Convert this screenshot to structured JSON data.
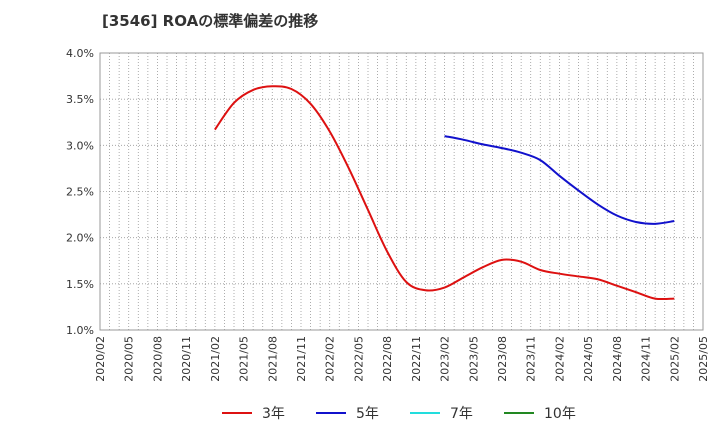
{
  "chart_data": {
    "type": "line",
    "title": "[3546]  ROAの標準偏差の推移",
    "xlabel": "",
    "ylabel": "",
    "x_ticks": [
      "2020/02",
      "2020/05",
      "2020/08",
      "2020/11",
      "2021/02",
      "2021/05",
      "2021/08",
      "2021/11",
      "2022/02",
      "2022/05",
      "2022/08",
      "2022/11",
      "2023/02",
      "2023/05",
      "2023/08",
      "2023/11",
      "2024/02",
      "2024/05",
      "2024/08",
      "2024/11",
      "2025/02",
      "2025/05"
    ],
    "y_ticks": [
      "1.0%",
      "1.5%",
      "2.0%",
      "2.5%",
      "3.0%",
      "3.5%",
      "4.0%"
    ],
    "ylim": [
      1.0,
      4.0
    ],
    "grid": true,
    "legend_position": "bottom",
    "series": [
      {
        "name": "3年",
        "color": "#dd1111",
        "x": [
          "2021/02",
          "2021/04",
          "2021/06",
          "2021/08",
          "2021/10",
          "2021/12",
          "2022/02",
          "2022/04",
          "2022/06",
          "2022/08",
          "2022/10",
          "2022/12",
          "2023/02",
          "2023/04",
          "2023/06",
          "2023/08",
          "2023/10",
          "2023/12",
          "2024/02",
          "2024/04",
          "2024/06",
          "2024/08",
          "2024/10",
          "2024/12",
          "2025/02"
        ],
        "values": [
          3.17,
          3.46,
          3.6,
          3.64,
          3.61,
          3.45,
          3.15,
          2.75,
          2.3,
          1.85,
          1.52,
          1.43,
          1.46,
          1.57,
          1.68,
          1.76,
          1.74,
          1.65,
          1.61,
          1.58,
          1.55,
          1.48,
          1.41,
          1.34,
          1.34
        ]
      },
      {
        "name": "5年",
        "color": "#1111cc",
        "x": [
          "2023/02",
          "2023/04",
          "2023/06",
          "2023/08",
          "2023/10",
          "2023/12",
          "2024/02",
          "2024/04",
          "2024/06",
          "2024/08",
          "2024/10",
          "2024/12",
          "2025/02"
        ],
        "values": [
          3.1,
          3.06,
          3.01,
          2.97,
          2.92,
          2.84,
          2.67,
          2.51,
          2.36,
          2.24,
          2.17,
          2.15,
          2.18
        ]
      },
      {
        "name": "7年",
        "color": "#22dddd",
        "x": [],
        "values": []
      },
      {
        "name": "10年",
        "color": "#228822",
        "x": [],
        "values": []
      }
    ]
  }
}
